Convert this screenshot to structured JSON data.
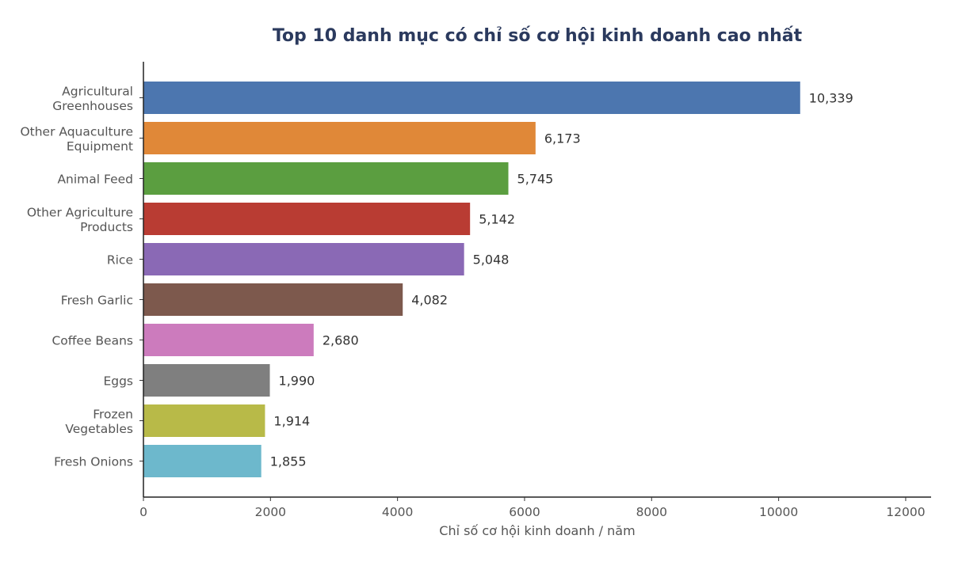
{
  "chart_data": {
    "type": "bar",
    "orientation": "horizontal",
    "title": "Top 10 danh mục có chỉ số cơ hội kinh doanh cao nhất",
    "xlabel": "Chỉ số cơ hội kinh doanh / năm",
    "ylabel": "",
    "xlim": [
      0,
      12400
    ],
    "xticks": [
      0,
      2000,
      4000,
      6000,
      8000,
      10000,
      12000
    ],
    "grid": false,
    "legend": "none",
    "categories": [
      [
        "Agricultural",
        "Greenhouses"
      ],
      [
        "Other Aquaculture",
        "Equipment"
      ],
      [
        "Animal Feed"
      ],
      [
        "Other Agriculture",
        "Products"
      ],
      [
        "Rice"
      ],
      [
        "Fresh Garlic"
      ],
      [
        "Coffee Beans"
      ],
      [
        "Eggs"
      ],
      [
        "Frozen",
        "Vegetables"
      ],
      [
        "Fresh Onions"
      ]
    ],
    "values": [
      10339,
      6173,
      5745,
      5142,
      5048,
      4082,
      2680,
      1990,
      1914,
      1855
    ],
    "value_labels": [
      "10,339",
      "6,173",
      "5,745",
      "5,142",
      "5,048",
      "4,082",
      "2,680",
      "1,990",
      "1,914",
      "1,855"
    ],
    "colors": [
      "#4c76af",
      "#e08838",
      "#5b9e40",
      "#b93c33",
      "#8a69b5",
      "#7d594d",
      "#cc7bbd",
      "#7f7f7f",
      "#b8ba48",
      "#6db8cc"
    ],
    "title_color": "#2b3a5e"
  }
}
